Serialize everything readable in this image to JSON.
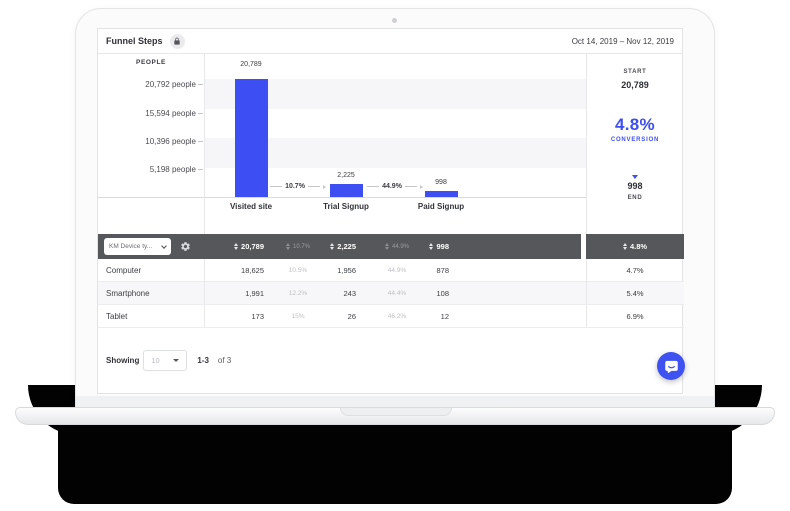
{
  "header": {
    "title": "Funnel Steps",
    "date_range": "Oct 14, 2019 – Nov 12, 2019"
  },
  "chart_data": {
    "type": "bar",
    "title": "Funnel Steps",
    "ylabel": "PEOPLE",
    "y_tick_labels": [
      "20,792 people",
      "15,594 people",
      "10,396 people",
      "5,198 people"
    ],
    "categories": [
      "Visited site",
      "Trial Signup",
      "Paid Signup"
    ],
    "values": [
      20789,
      2225,
      998
    ],
    "value_labels": [
      "20,789",
      "2,225",
      "998"
    ],
    "step_conversion_rates": [
      "10.7%",
      "44.9%"
    ],
    "ylim": [
      0,
      20792
    ],
    "grid": "horizontal-bands",
    "legend": "none",
    "bar_color": "#3D4EF2"
  },
  "summary_panel": {
    "start_label": "START",
    "start_value": "20,789",
    "conversion_value": "4.8%",
    "conversion_label": "CONVERSION",
    "end_value": "998",
    "end_label": "END"
  },
  "segment_table": {
    "selector_value": "KM Device ty...",
    "header_row": {
      "values": [
        "20,789",
        "10.7%",
        "2,225",
        "44.9%",
        "998"
      ],
      "overall_conversion": "4.8%"
    },
    "rows": [
      {
        "label": "Computer",
        "values": [
          "18,625",
          "10.5%",
          "1,956",
          "44.9%",
          "878"
        ],
        "conversion": "4.7%"
      },
      {
        "label": "Smartphone",
        "values": [
          "1,991",
          "12.2%",
          "243",
          "44.4%",
          "108"
        ],
        "conversion": "5.4%"
      },
      {
        "label": "Tablet",
        "values": [
          "173",
          "15%",
          "26",
          "46.2%",
          "12"
        ],
        "conversion": "6.9%"
      }
    ]
  },
  "pagination": {
    "showing_label": "Showing",
    "page_size": "10",
    "range": "1-3",
    "of_total": "of 3"
  },
  "colors": {
    "accent_blue": "#3D4EF2",
    "dark_header_row": "#56575B",
    "chat_button_blue": "#3E52F2"
  }
}
